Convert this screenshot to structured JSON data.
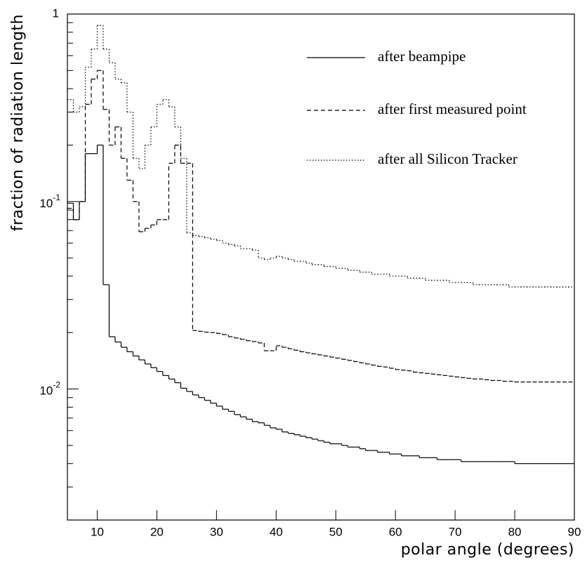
{
  "chart_data": {
    "type": "histogram",
    "x_label": "polar angle (degrees)",
    "y_label": "fraction of radiation length",
    "xlim": [
      5,
      90
    ],
    "xticks": [
      10,
      20,
      30,
      40,
      50,
      60,
      70,
      80,
      90
    ],
    "ylim": [
      0.002,
      1
    ],
    "yscale": "log",
    "yticks": [
      1,
      {
        "value": 0.1,
        "label": "10",
        "exponent": "-1"
      },
      {
        "value": 0.01,
        "label": "10",
        "exponent": "-2"
      }
    ],
    "yminorticks": [
      0.002,
      0.003,
      0.004,
      0.005,
      0.006,
      0.007,
      0.008,
      0.009,
      0.02,
      0.03,
      0.04,
      0.05,
      0.06,
      0.07,
      0.08,
      0.09,
      0.2,
      0.3,
      0.4,
      0.5,
      0.6,
      0.7,
      0.8,
      0.9
    ],
    "legend": "upper right",
    "bins": [
      5,
      6,
      7,
      8,
      9,
      10,
      11,
      12,
      13,
      14,
      15,
      16,
      17,
      18,
      19,
      20,
      21,
      22,
      23,
      24,
      25,
      26,
      27,
      28,
      29,
      30,
      31,
      32,
      33,
      34,
      35,
      36,
      37,
      38,
      39,
      40,
      41,
      42,
      43,
      44,
      45,
      46,
      47,
      48,
      49,
      50,
      51,
      52,
      53,
      54,
      55,
      56,
      57,
      58,
      59,
      60,
      61,
      62,
      63,
      64,
      65,
      66,
      67,
      68,
      69,
      70,
      71,
      72,
      73,
      74,
      75,
      76,
      77,
      78,
      79,
      80,
      81,
      82,
      83,
      84,
      85,
      86,
      87,
      88,
      89,
      90
    ],
    "series": [
      {
        "name": "after beampipe",
        "color": "#000000",
        "line_style": "solid",
        "values": [
          0.098,
          0.08,
          0.1,
          0.18,
          0.18,
          0.2,
          0.036,
          0.019,
          0.0178,
          0.0167,
          0.0158,
          0.015,
          0.0143,
          0.0136,
          0.013,
          0.0124,
          0.0118,
          0.0113,
          0.0108,
          0.0101,
          0.0097,
          0.0093,
          0.009,
          0.0087,
          0.0084,
          0.0081,
          0.0078,
          0.0076,
          0.0073,
          0.0071,
          0.0069,
          0.0067,
          0.0066,
          0.0064,
          0.0062,
          0.0061,
          0.0059,
          0.0058,
          0.0057,
          0.0056,
          0.0055,
          0.0054,
          0.0053,
          0.0052,
          0.0051,
          0.0051,
          0.005,
          0.0049,
          0.0049,
          0.0048,
          0.0047,
          0.0047,
          0.0046,
          0.0046,
          0.0045,
          0.0045,
          0.0044,
          0.0044,
          0.0044,
          0.0043,
          0.0043,
          0.0043,
          0.0042,
          0.0042,
          0.0042,
          0.0042,
          0.0041,
          0.0041,
          0.0041,
          0.0041,
          0.0041,
          0.0041,
          0.0041,
          0.0041,
          0.0041,
          0.004,
          0.004,
          0.004,
          0.004,
          0.004,
          0.004,
          0.004,
          0.004,
          0.004,
          0.004
        ]
      },
      {
        "name": "after first measured point",
        "color": "#000000",
        "line_style": "dashed",
        "values": [
          0.092,
          0.08,
          0.1,
          0.33,
          0.45,
          0.5,
          0.31,
          0.2,
          0.25,
          0.17,
          0.13,
          0.1,
          0.069,
          0.072,
          0.075,
          0.08,
          0.08,
          0.16,
          0.2,
          0.16,
          0.16,
          0.0205,
          0.0203,
          0.0201,
          0.02,
          0.0198,
          0.0195,
          0.019,
          0.0187,
          0.0184,
          0.0181,
          0.0179,
          0.0176,
          0.016,
          0.016,
          0.017,
          0.0167,
          0.0164,
          0.0161,
          0.0158,
          0.0156,
          0.0154,
          0.0152,
          0.015,
          0.0148,
          0.0146,
          0.0144,
          0.0142,
          0.014,
          0.0138,
          0.0136,
          0.0134,
          0.0132,
          0.0131,
          0.0129,
          0.0127,
          0.0126,
          0.0125,
          0.0123,
          0.0122,
          0.0121,
          0.012,
          0.0119,
          0.0118,
          0.0117,
          0.0116,
          0.0115,
          0.0114,
          0.0113,
          0.0113,
          0.0112,
          0.0111,
          0.0111,
          0.011,
          0.011,
          0.0109,
          0.0109,
          0.0109,
          0.0109,
          0.0109,
          0.0109,
          0.0109,
          0.0109,
          0.0109,
          0.0109
        ]
      },
      {
        "name": "after all Silicon Tracker",
        "color": "#000000",
        "line_style": "dotted",
        "values": [
          0.35,
          0.3,
          0.32,
          0.52,
          0.65,
          0.87,
          0.65,
          0.55,
          0.45,
          0.43,
          0.3,
          0.17,
          0.15,
          0.2,
          0.25,
          0.33,
          0.35,
          0.32,
          0.25,
          0.17,
          0.068,
          0.066,
          0.065,
          0.064,
          0.063,
          0.062,
          0.06,
          0.059,
          0.058,
          0.056,
          0.056,
          0.055,
          0.05,
          0.049,
          0.05,
          0.051,
          0.05,
          0.049,
          0.048,
          0.048,
          0.047,
          0.046,
          0.046,
          0.045,
          0.045,
          0.044,
          0.044,
          0.043,
          0.043,
          0.042,
          0.042,
          0.041,
          0.041,
          0.041,
          0.04,
          0.04,
          0.04,
          0.039,
          0.039,
          0.039,
          0.038,
          0.038,
          0.038,
          0.038,
          0.037,
          0.037,
          0.037,
          0.037,
          0.036,
          0.036,
          0.036,
          0.036,
          0.036,
          0.036,
          0.035,
          0.035,
          0.035,
          0.035,
          0.035,
          0.035,
          0.035,
          0.035,
          0.035,
          0.035,
          0.035
        ]
      }
    ]
  }
}
